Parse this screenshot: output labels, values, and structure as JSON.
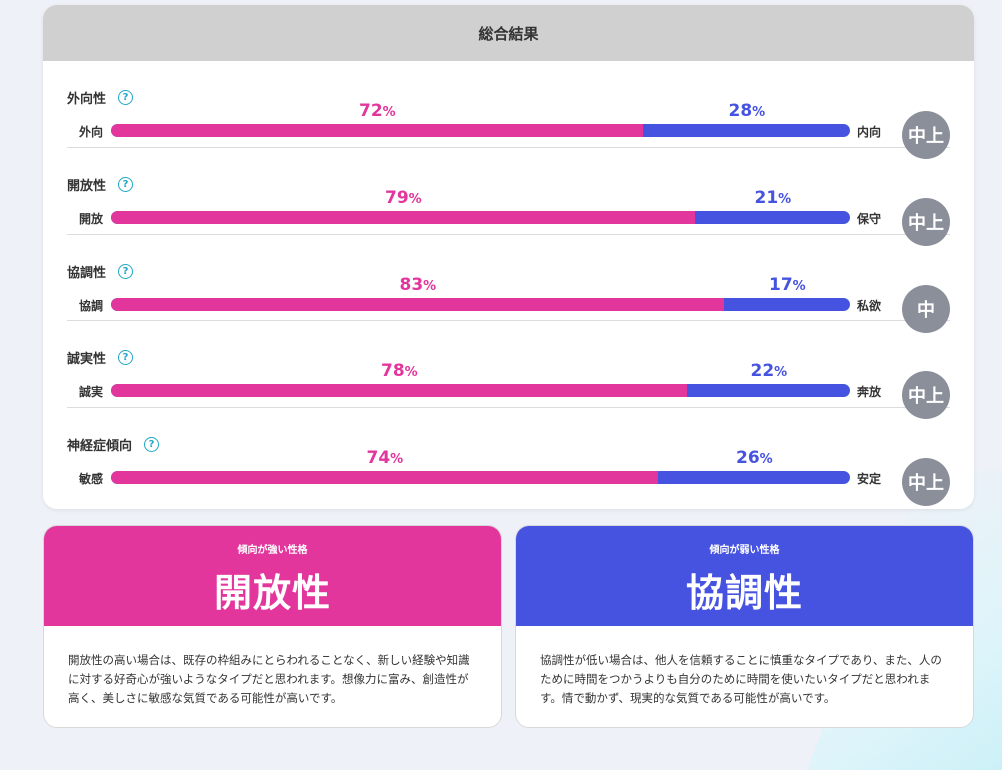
{
  "summary": {
    "title": "総合結果",
    "help_glyph": "?",
    "traits": [
      {
        "name": "外向性",
        "left_label": "外向",
        "right_label": "内向",
        "left_pct": 72,
        "right_pct": 28,
        "level": "中上"
      },
      {
        "name": "開放性",
        "left_label": "開放",
        "right_label": "保守",
        "left_pct": 79,
        "right_pct": 21,
        "level": "中上"
      },
      {
        "name": "協調性",
        "left_label": "協調",
        "right_label": "私欲",
        "left_pct": 83,
        "right_pct": 17,
        "level": "中"
      },
      {
        "name": "誠実性",
        "left_label": "誠実",
        "right_label": "奔放",
        "left_pct": 78,
        "right_pct": 22,
        "level": "中上"
      },
      {
        "name": "神経症傾向",
        "left_label": "敏感",
        "right_label": "安定",
        "left_pct": 74,
        "right_pct": 26,
        "level": "中上"
      }
    ],
    "pct_unit": "%"
  },
  "strong": {
    "kicker": "傾向が強い性格",
    "title": "開放性",
    "description": "開放性の高い場合は、既存の枠組みにとらわれることなく、新しい経験や知識に対する好奇心が強いようなタイプだと思われます。想像力に富み、創造性が高く、美しさに敏感な気質である可能性が高いです。"
  },
  "weak": {
    "kicker": "傾向が弱い性格",
    "title": "協調性",
    "description": "協調性が低い場合は、他人を信頼することに慎重なタイプであり、また、人のために時間をつかうよりも自分のために時間を使いたいタイプだと思われます。情で動かず、現実的な気質である可能性が高いです。"
  },
  "colors": {
    "pink": "#e3369c",
    "blue": "#4653e0",
    "badge": "#8a8f99"
  }
}
